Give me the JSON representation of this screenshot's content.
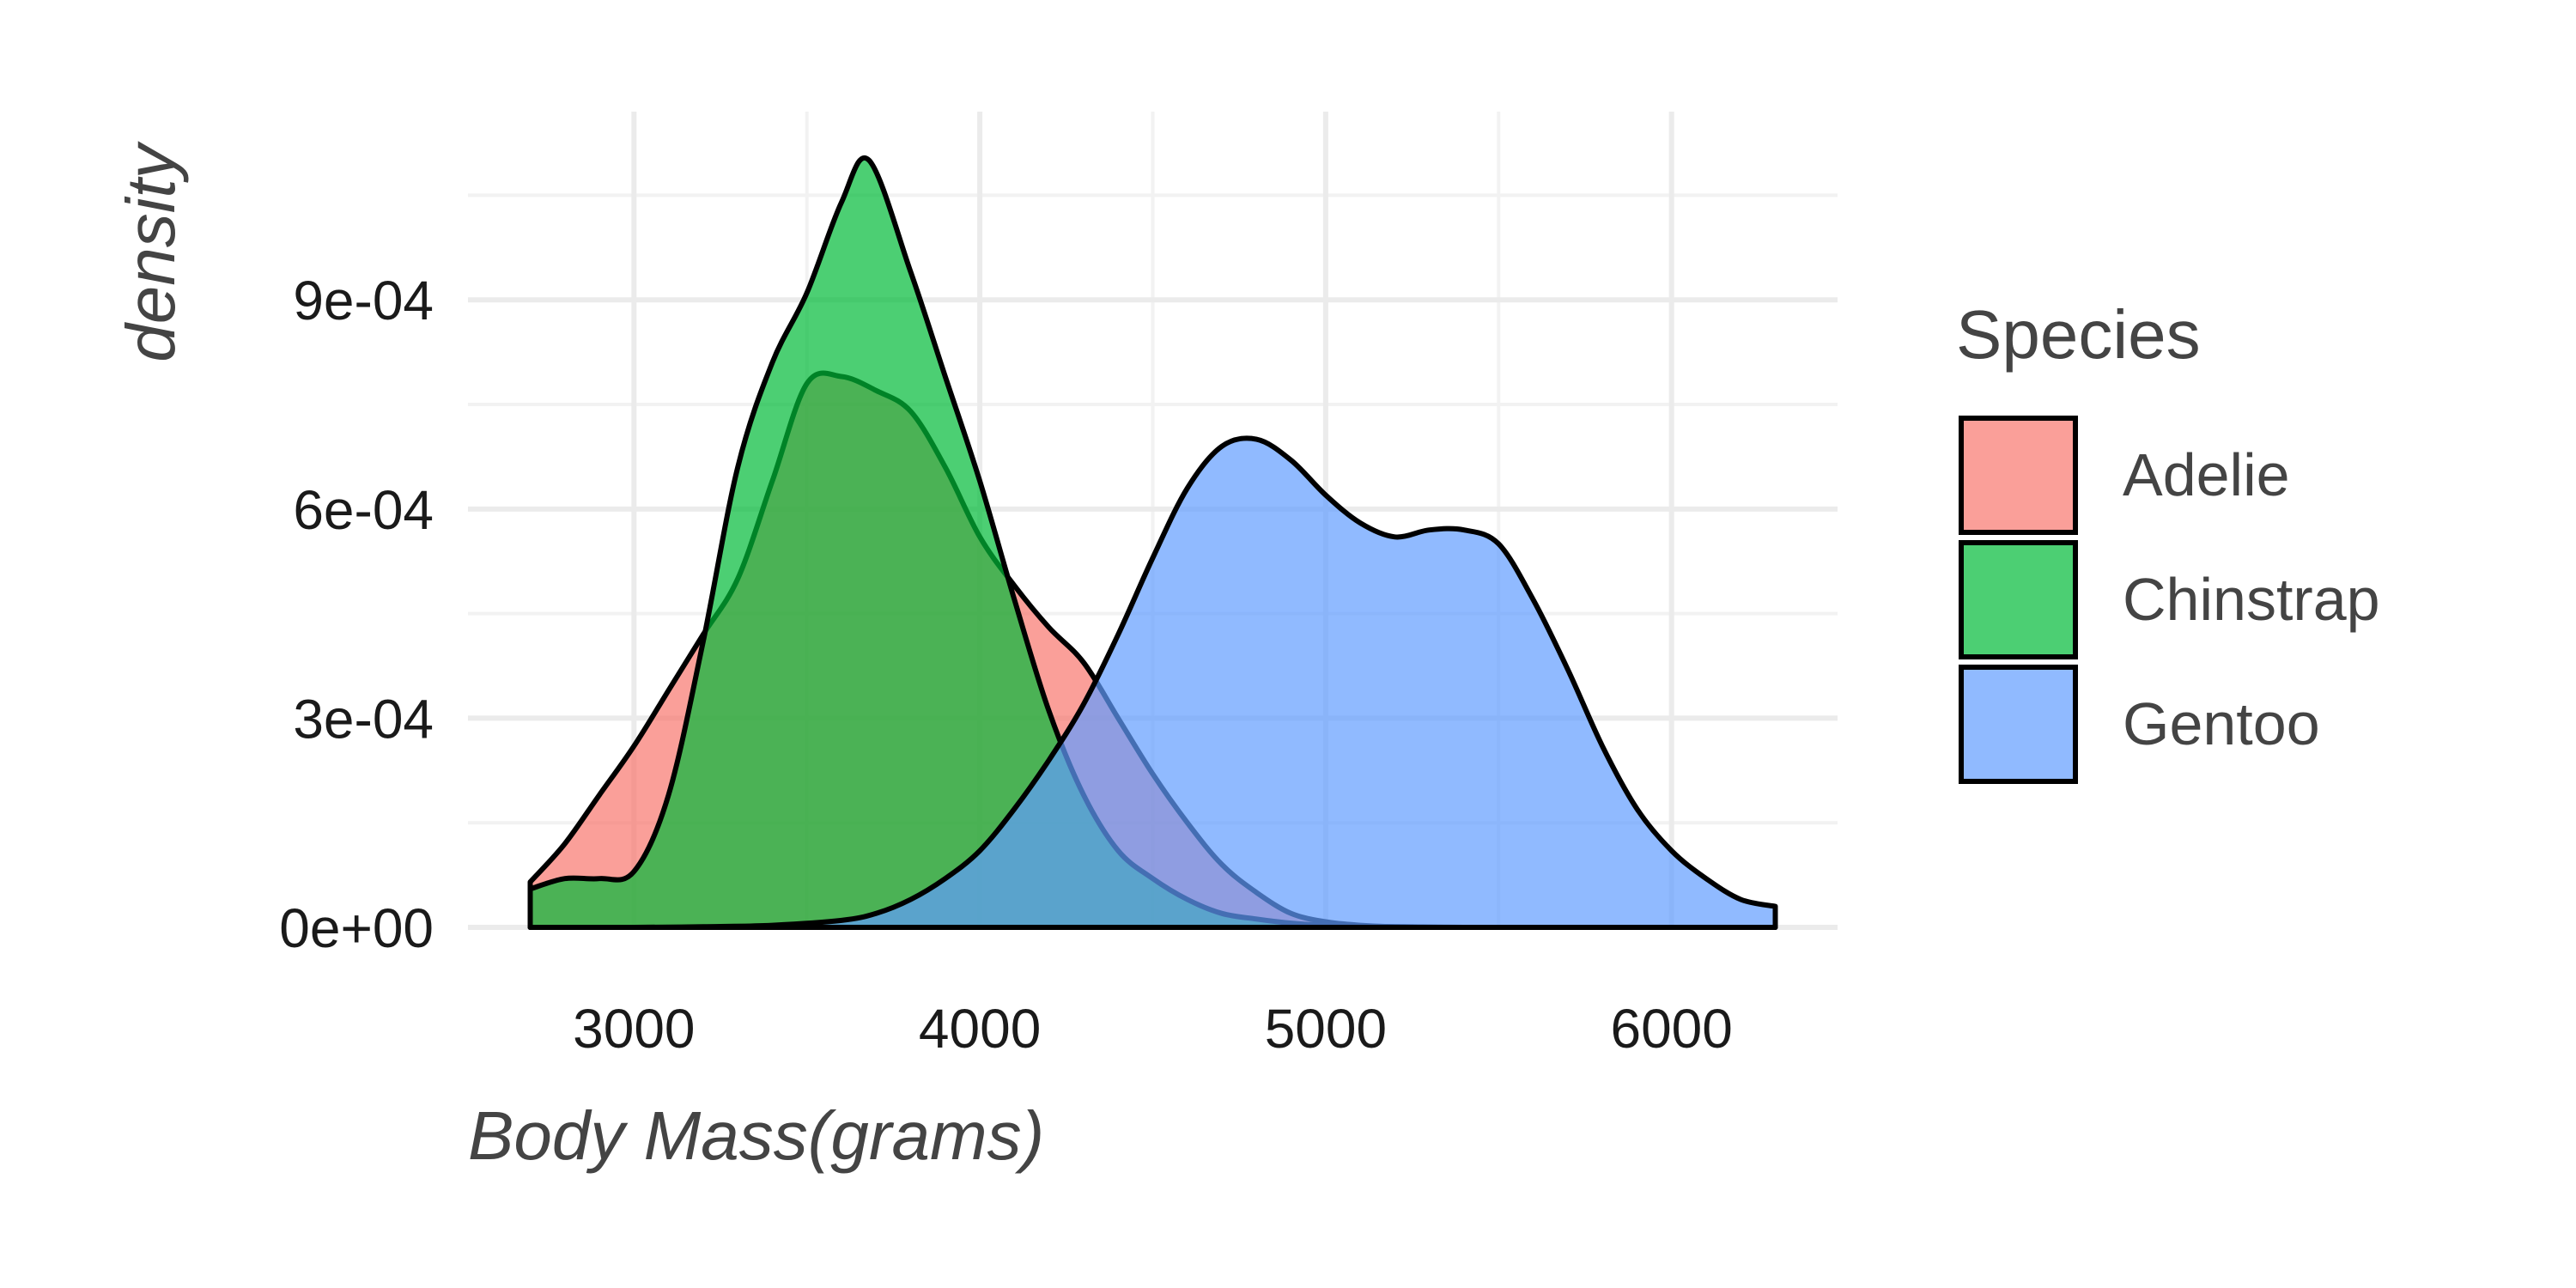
{
  "chart_data": {
    "type": "area",
    "subtype": "density",
    "title": "",
    "xlabel": "Body Mass(grams)",
    "ylabel": "density",
    "xlim": [
      2520,
      6480
    ],
    "ylim": [
      0,
      0.00117
    ],
    "x_ticks": [
      3000,
      4000,
      5000,
      6000
    ],
    "x_tick_labels": [
      "3000",
      "4000",
      "5000",
      "6000"
    ],
    "y_ticks": [
      0,
      0.0003,
      0.0006,
      0.0009
    ],
    "y_tick_labels": [
      "0e+00",
      "3e-04",
      "6e-04",
      "9e-04"
    ],
    "grid": true,
    "legend": {
      "title": "Species",
      "position": "right"
    },
    "series": [
      {
        "name": "Adelie",
        "color": "#F8766D",
        "x": [
          2700,
          2800,
          2900,
          3000,
          3100,
          3200,
          3300,
          3400,
          3500,
          3600,
          3700,
          3800,
          3900,
          4000,
          4100,
          4200,
          4300,
          4400,
          4500,
          4600,
          4700,
          4800,
          4900,
          5000,
          5100,
          5200,
          5400,
          5600,
          5800,
          6000,
          6300
        ],
        "y": [
          6.5e-05,
          0.00012,
          0.00019,
          0.00026,
          0.00034,
          0.00042,
          0.0005,
          0.00064,
          0.00078,
          0.00079,
          0.00077,
          0.00074,
          0.00066,
          0.00056,
          0.00049,
          0.00043,
          0.00038,
          0.0003,
          0.00022,
          0.00015,
          9e-05,
          5e-05,
          2e-05,
          8e-06,
          3e-06,
          1e-06,
          0,
          0,
          0,
          0,
          0
        ]
      },
      {
        "name": "Chinstrap",
        "color": "#00BA38",
        "x": [
          2700,
          2800,
          2900,
          3000,
          3100,
          3200,
          3300,
          3400,
          3500,
          3600,
          3680,
          3800,
          3900,
          4000,
          4100,
          4200,
          4300,
          4400,
          4500,
          4600,
          4700,
          4800,
          4900,
          5000,
          5200,
          5400,
          5600,
          5800,
          6000,
          6300
        ],
        "y": [
          5.5e-05,
          7e-05,
          7e-05,
          8e-05,
          0.00019,
          0.00041,
          0.00066,
          0.00081,
          0.00091,
          0.00104,
          0.0011,
          0.00094,
          0.00079,
          0.00064,
          0.00047,
          0.00031,
          0.00019,
          0.00011,
          7e-05,
          4e-05,
          2e-05,
          1.2e-05,
          6e-06,
          3e-06,
          1e-06,
          0,
          0,
          0,
          0,
          0
        ]
      },
      {
        "name": "Gentoo",
        "color": "#619CFF",
        "x": [
          2700,
          3000,
          3200,
          3400,
          3600,
          3700,
          3800,
          3900,
          4000,
          4100,
          4200,
          4300,
          4400,
          4500,
          4600,
          4700,
          4800,
          4900,
          5000,
          5100,
          5200,
          5300,
          5400,
          5500,
          5600,
          5700,
          5800,
          5900,
          6000,
          6100,
          6200,
          6300
        ],
        "y": [
          0,
          0,
          1e-06,
          3e-06,
          1e-05,
          2e-05,
          4e-05,
          7e-05,
          0.00011,
          0.00017,
          0.00024,
          0.00032,
          0.00042,
          0.00053,
          0.00063,
          0.00069,
          0.0007,
          0.00067,
          0.00062,
          0.00058,
          0.00056,
          0.00057,
          0.00057,
          0.00055,
          0.00047,
          0.00037,
          0.00026,
          0.00017,
          0.00011,
          7e-05,
          4e-05,
          3e-05
        ]
      }
    ]
  }
}
